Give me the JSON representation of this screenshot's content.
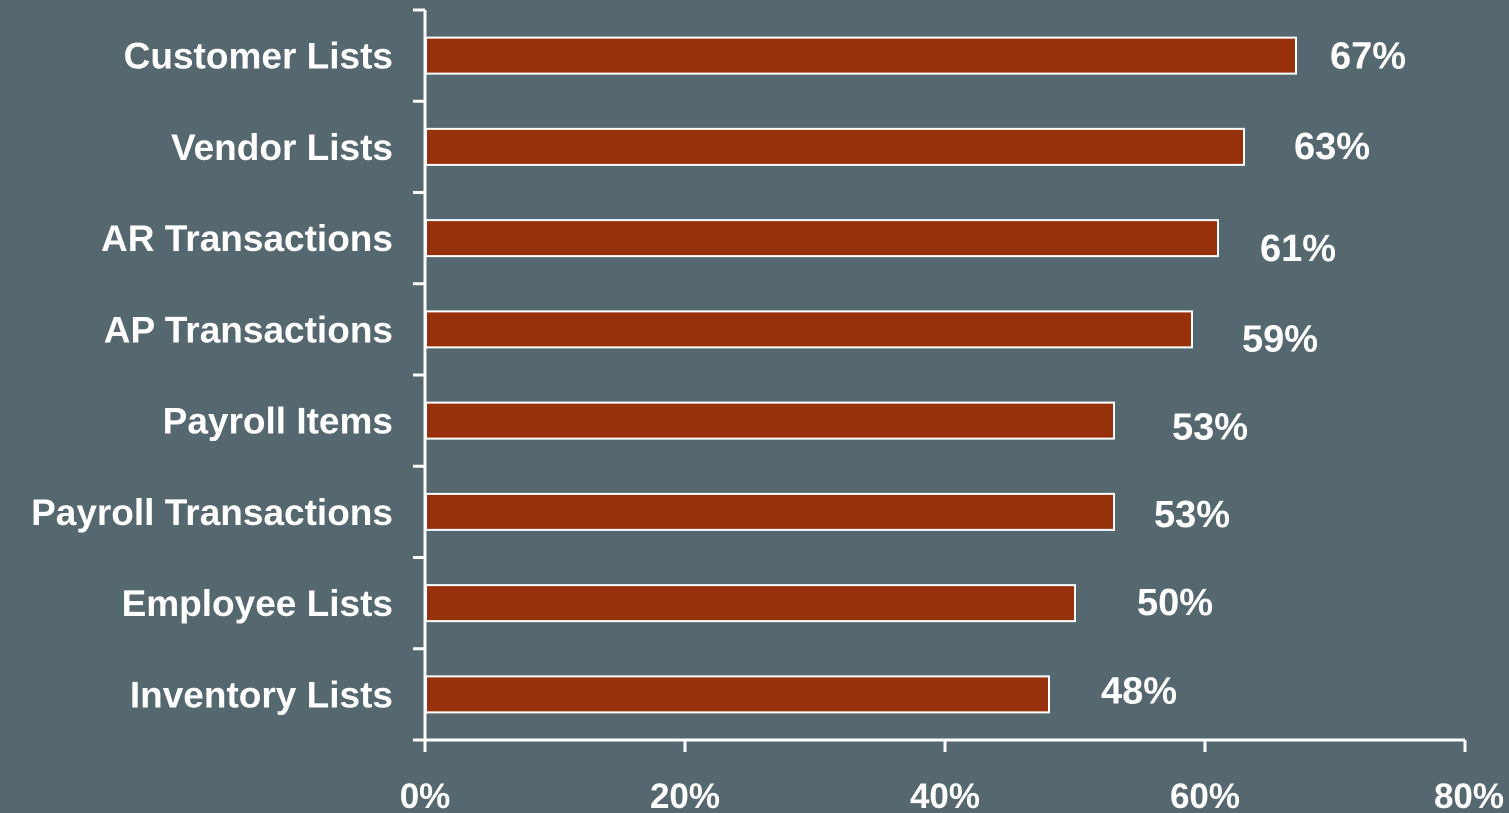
{
  "chart_data": {
    "type": "bar",
    "orientation": "horizontal",
    "categories": [
      "Customer Lists",
      "Vendor Lists",
      "AR Transactions",
      "AP Transactions",
      "Payroll Items",
      "Payroll Transactions",
      "Employee Lists",
      "Inventory Lists"
    ],
    "values": [
      67,
      63,
      61,
      59,
      53,
      53,
      50,
      48
    ],
    "data_labels": [
      "67%",
      "63%",
      "61%",
      "59%",
      "53%",
      "53%",
      "50%",
      "48%"
    ],
    "title": "",
    "xlabel": "",
    "ylabel": "",
    "xlim": [
      0,
      80
    ],
    "x_ticks": [
      0,
      20,
      40,
      60,
      80
    ],
    "x_tick_labels": [
      "0%",
      "20%",
      "40%",
      "60%",
      "80%"
    ],
    "grid": false,
    "legend": "none"
  },
  "colors": {
    "background": "#56686f",
    "bar_fill": "#97310c",
    "bar_stroke": "#ffffff",
    "axis": "#ffffff",
    "text": "#ffffff"
  }
}
